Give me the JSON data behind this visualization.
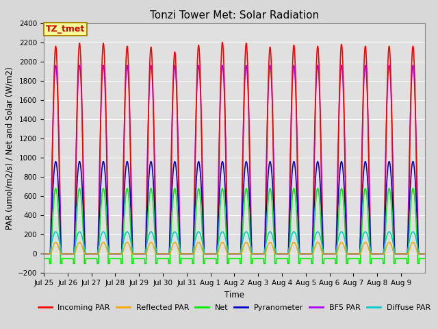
{
  "title": "Tonzi Tower Met: Solar Radiation",
  "xlabel": "Time",
  "ylabel": "PAR (umol/m2/s) / Net and Solar (W/m2)",
  "ylim": [
    -200,
    2400
  ],
  "yticks": [
    -200,
    0,
    200,
    400,
    600,
    800,
    1000,
    1200,
    1400,
    1600,
    1800,
    2000,
    2200,
    2400
  ],
  "annotation_text": "TZ_tmet",
  "annotation_color": "#cc0000",
  "annotation_bg": "#ffff99",
  "annotation_border": "#aa8800",
  "bg_color": "#e8e8e8",
  "plot_bg_color": "#e0e0e0",
  "series": [
    {
      "name": "Incoming PAR",
      "color": "#ff0000",
      "peak": 2160,
      "lw": 1.2
    },
    {
      "name": "Reflected PAR",
      "color": "#ffa500",
      "peak": 120,
      "lw": 1.2
    },
    {
      "name": "Net",
      "color": "#00ee00",
      "peak": 680,
      "lw": 1.2
    },
    {
      "name": "Pyranometer",
      "color": "#0000cc",
      "peak": 960,
      "lw": 1.2
    },
    {
      "name": "BF5 PAR",
      "color": "#aa00ff",
      "peak": 1960,
      "lw": 1.2
    },
    {
      "name": "Diffuse PAR",
      "color": "#00cccc",
      "peak": 230,
      "lw": 1.2
    }
  ],
  "n_days": 16,
  "xtick_labels": [
    "Jul 25",
    "Jul 26",
    "Jul 27",
    "Jul 28",
    "Jul 29",
    "Jul 30",
    "Jul 31",
    "Aug 1",
    "Aug 2",
    "Aug 3",
    "Aug 4",
    "Aug 5",
    "Aug 6",
    "Aug 7",
    "Aug 8",
    "Aug 9"
  ],
  "title_fontsize": 11,
  "tick_fontsize": 7.5,
  "label_fontsize": 8.5,
  "legend_fontsize": 8
}
